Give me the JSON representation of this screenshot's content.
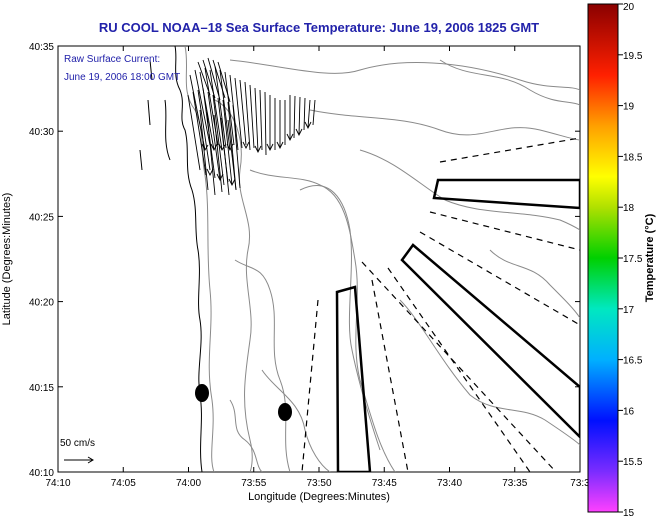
{
  "title": "RU COOL  NOAA–18  Sea Surface Temperature:  June 19, 2006 1825 GMT",
  "info": {
    "line1": "Raw Surface Current:",
    "line2": "June 19, 2006 18:00 GMT"
  },
  "scale_label": "50 cm/s",
  "axes": {
    "xlabel": "Longitude (Degrees:Minutes)",
    "ylabel": "Latitude (Degrees:Minutes)",
    "xticks": [
      "74:10",
      "74:05",
      "74:00",
      "73:55",
      "73:50",
      "73:45",
      "73:40",
      "73:35",
      "73:3"
    ],
    "yticks": [
      "40:35",
      "40:30",
      "40:25",
      "40:20",
      "40:15",
      "40:10"
    ]
  },
  "colorbar": {
    "label": "Temperature (°C)",
    "ticks": [
      "20",
      "19.5",
      "19",
      "18.5",
      "18",
      "17.5",
      "17",
      "16.5",
      "16",
      "15.5",
      "15"
    ]
  },
  "colors": {
    "title": "#2222aa",
    "bathymetry": "#8a8a8a"
  }
}
